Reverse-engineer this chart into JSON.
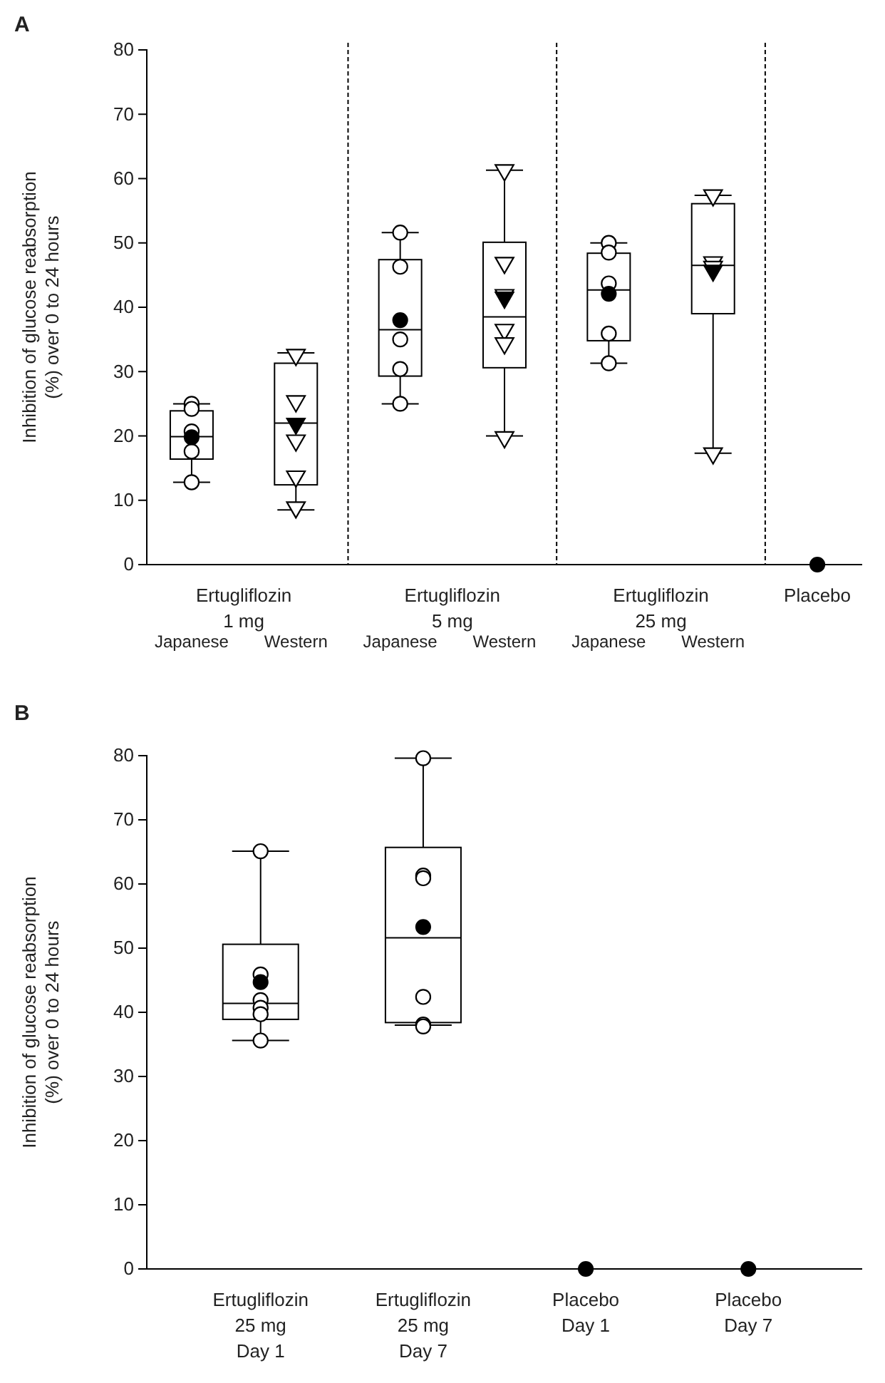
{
  "chart_data": [
    {
      "type": "box",
      "title": "A",
      "ylabel": "Inhibition of glucose reabsorption\n(%) over 0 to 24 hours",
      "categories": [
        "Japanese",
        "Western",
        "Japanese",
        "Western",
        "Japanese",
        "Western",
        "Placebo"
      ],
      "annotations": [
        "Ertugliflozin\n1 mg",
        "Ertugliflozin\n5 mg",
        "Ertugliflozin\n25 mg"
      ],
      "ylim": [
        0,
        80
      ],
      "yticks": [
        0,
        10,
        20,
        30,
        40,
        50,
        60,
        70,
        80
      ],
      "series": [
        {
          "marker": "circle",
          "color": "#000000",
          "boxes": [
            {
              "low": 12.8,
              "q1": 16.4,
              "median": 19.9,
              "q3": 23.9,
              "high": 25.0,
              "mean": 19.8,
              "outliers": [
                25.0,
                24.2,
                20.7,
                17.6,
                12.8
              ]
            },
            null,
            {
              "low": 25.0,
              "q1": 29.3,
              "median": 36.5,
              "q3": 47.4,
              "high": 51.6,
              "mean": 38.0,
              "outliers": [
                51.6,
                46.3,
                35.0,
                30.4,
                25.0
              ]
            },
            null,
            {
              "low": 31.3,
              "q1": 34.8,
              "median": 42.7,
              "q3": 48.4,
              "high": 50.0,
              "mean": 42.1,
              "outliers": [
                50.0,
                48.5,
                43.7,
                35.9,
                31.3
              ]
            },
            null,
            {
              "low": 0,
              "q1": 0,
              "median": 0,
              "q3": 0,
              "high": 0,
              "mean": 0
            }
          ]
        },
        {
          "marker": "triangle",
          "color": "#000000",
          "boxes": [
            null,
            {
              "low": 8.5,
              "q1": 12.4,
              "median": 22.0,
              "q3": 31.3,
              "high": 32.9,
              "mean": 21.9,
              "outliers": [
                32.6,
                25.4,
                19.3,
                13.7,
                8.9
              ]
            },
            null,
            {
              "low": 20.0,
              "q1": 30.6,
              "median": 38.5,
              "q3": 50.1,
              "high": 61.3,
              "mean": 41.5,
              "outliers": [
                61.3,
                46.9,
                41.9,
                36.5,
                34.4,
                19.8
              ]
            },
            null,
            {
              "low": 17.3,
              "q1": 39.0,
              "median": 46.5,
              "q3": 56.1,
              "high": 57.4,
              "mean": 45.7,
              "outliers": [
                57.4,
                47.0,
                46.3,
                17.3
              ]
            },
            null
          ]
        }
      ]
    },
    {
      "type": "box",
      "title": "B",
      "ylabel": "Inhibition of glucose reabsorption\n(%) over 0 to 24 hours",
      "categories": [
        "Ertugliflozin\n25 mg\nDay 1",
        "Ertugliflozin\n25 mg\nDay 7",
        "Placebo\nDay 1",
        "Placebo\nDay 7"
      ],
      "ylim": [
        0,
        80
      ],
      "yticks": [
        0,
        10,
        20,
        30,
        40,
        50,
        60,
        70,
        80
      ],
      "marker": "circle",
      "boxes": [
        {
          "low": 35.6,
          "q1": 38.9,
          "median": 41.4,
          "q3": 50.6,
          "high": 65.1,
          "mean": 44.7,
          "outliers": [
            65.1,
            45.9,
            41.9,
            40.7,
            39.7,
            35.6
          ]
        },
        {
          "low": 38.0,
          "q1": 38.4,
          "median": 51.6,
          "q3": 65.7,
          "high": 79.6,
          "mean": 53.3,
          "outliers": [
            79.6,
            61.3,
            60.9,
            42.4,
            38.1,
            37.8
          ]
        },
        {
          "low": 0,
          "q1": 0,
          "median": 0,
          "q3": 0,
          "high": 0,
          "mean": 0
        },
        {
          "low": 0,
          "q1": 0,
          "median": 0,
          "q3": 0,
          "high": 0,
          "mean": 0
        }
      ]
    }
  ]
}
